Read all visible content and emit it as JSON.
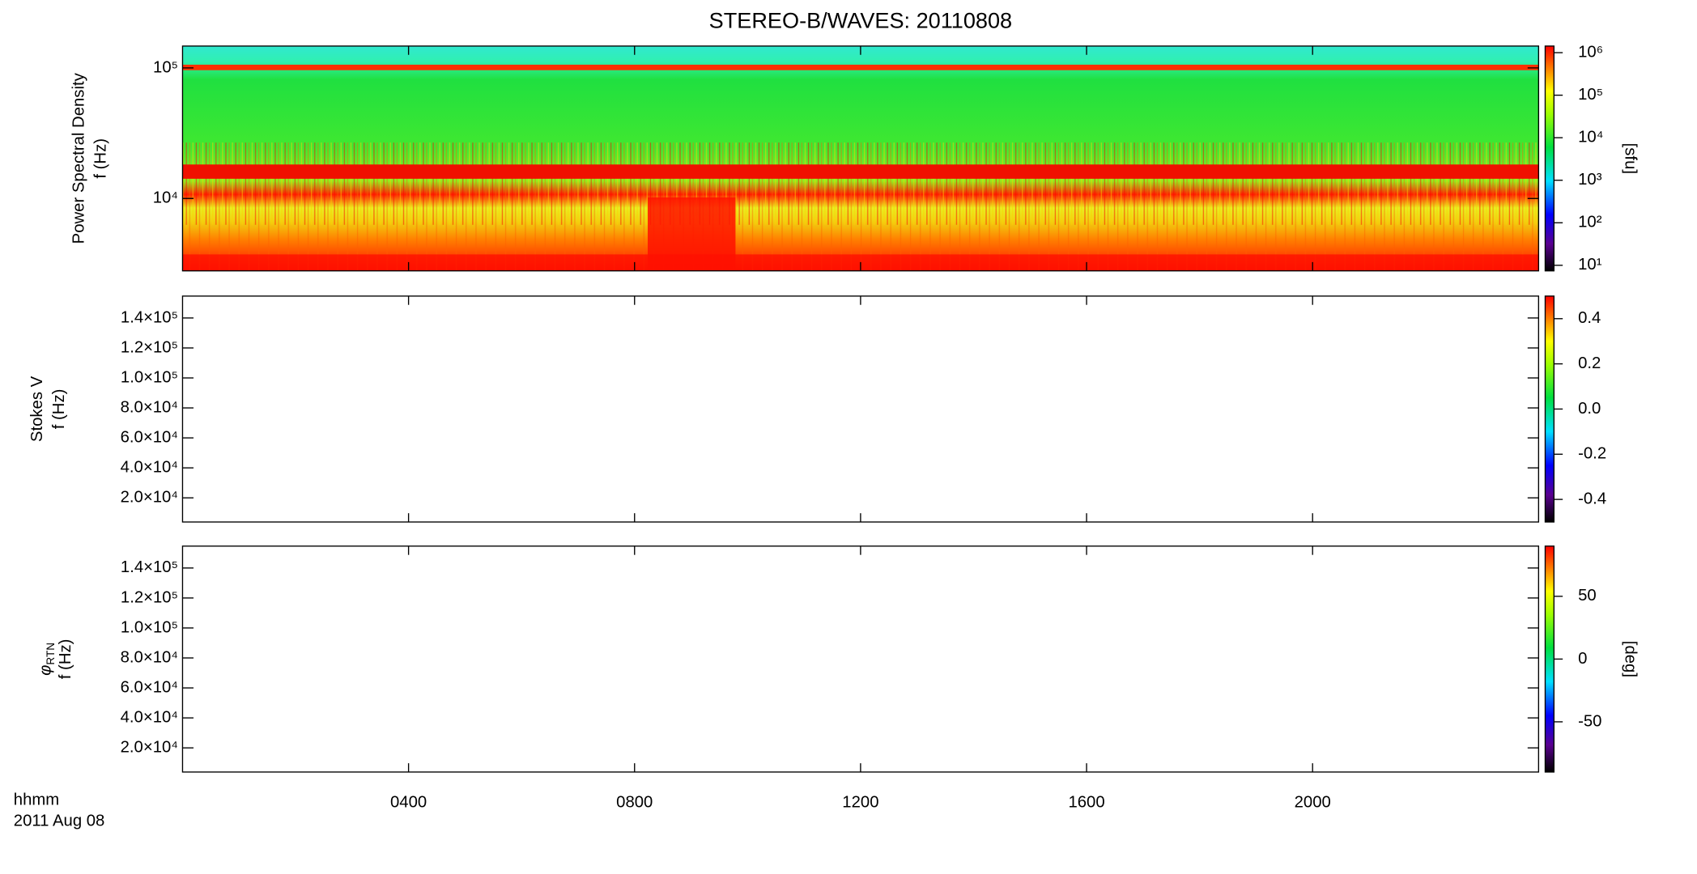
{
  "chart_data": [
    {
      "type": "heatmap",
      "title": "STEREO-B/WAVES: 20110808",
      "ylabel": [
        "Power Spectral Density",
        "f (Hz)"
      ],
      "ylog": true,
      "ylim": [
        2790,
        147000
      ],
      "yticks": [
        {
          "value": 10000,
          "label": "10⁴"
        },
        {
          "value": 100000,
          "label": "10⁵"
        }
      ],
      "xlim": [
        0,
        24
      ],
      "xticks": [
        4,
        8,
        12,
        16,
        20
      ],
      "colorbar": {
        "ylog": true,
        "ylim": [
          7.4,
          1430000
        ],
        "yticks": [
          {
            "value": 10,
            "label": "10¹"
          },
          {
            "value": 100,
            "label": "10²"
          },
          {
            "value": 1000,
            "label": "10³"
          },
          {
            "value": 10000,
            "label": "10⁴"
          },
          {
            "value": 100000,
            "label": "10⁵"
          },
          {
            "value": 1000000,
            "label": "10⁶"
          }
        ],
        "label": "[sfu]"
      }
    },
    {
      "type": "heatmap",
      "ylabel": [
        "Stokes V",
        "f (Hz)"
      ],
      "ylog": false,
      "ylim": [
        3900,
        154600
      ],
      "yticks": [
        {
          "value": 20000,
          "label": "2.0×10⁴"
        },
        {
          "value": 40000,
          "label": "4.0×10⁴"
        },
        {
          "value": 60000,
          "label": "6.0×10⁴"
        },
        {
          "value": 80000,
          "label": "8.0×10⁴"
        },
        {
          "value": 100000,
          "label": "1.0×10⁵"
        },
        {
          "value": 120000,
          "label": "1.2×10⁵"
        },
        {
          "value": 140000,
          "label": "1.4×10⁵"
        }
      ],
      "xlim": [
        0,
        24
      ],
      "xticks": [
        4,
        8,
        12,
        16,
        20
      ],
      "colorbar": {
        "ylog": false,
        "ylim": [
          -0.5,
          0.5
        ],
        "yticks": [
          -0.4,
          -0.2,
          {
            "value": 0,
            "label": "0.0"
          },
          0.2,
          0.4
        ]
      }
    },
    {
      "type": "heatmap",
      "ylabel_symbol": "φ",
      "ylabel_subscript": "RTN",
      "ylabel": [
        "f (Hz)"
      ],
      "ylog": false,
      "ylim": [
        3900,
        154600
      ],
      "yticks": [
        {
          "value": 20000,
          "label": "2.0×10⁴"
        },
        {
          "value": 40000,
          "label": "4.0×10⁴"
        },
        {
          "value": 60000,
          "label": "6.0×10⁴"
        },
        {
          "value": 80000,
          "label": "8.0×10⁴"
        },
        {
          "value": 100000,
          "label": "1.0×10⁵"
        },
        {
          "value": 120000,
          "label": "1.2×10⁵"
        },
        {
          "value": 140000,
          "label": "1.4×10⁵"
        }
      ],
      "xlim": [
        0,
        24
      ],
      "xticks": [
        {
          "value": 4,
          "label": "0400"
        },
        {
          "value": 8,
          "label": "0800"
        },
        {
          "value": 12,
          "label": "1200"
        },
        {
          "value": 16,
          "label": "1600"
        },
        {
          "value": 20,
          "label": "2000"
        }
      ],
      "xlabel": [
        "hhmm",
        "2011 Aug 08"
      ],
      "colorbar": {
        "ylog": false,
        "ylim": [
          -90,
          90
        ],
        "yticks": [
          -50,
          0,
          50
        ],
        "label": "[deg]"
      }
    }
  ]
}
